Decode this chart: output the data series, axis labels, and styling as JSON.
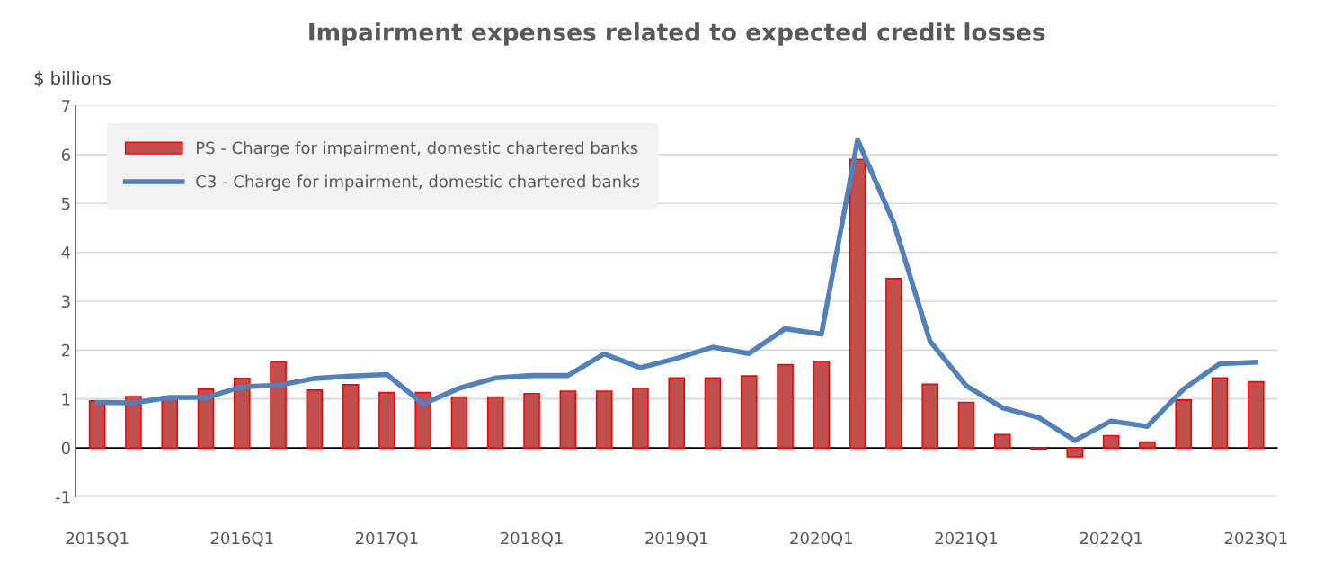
{
  "chart_data": {
    "type": "bar",
    "title": "Impairment expenses related to expected credit losses",
    "ylabel": "$ billions",
    "categories": [
      "2015Q1",
      null,
      null,
      null,
      "2016Q1",
      null,
      null,
      null,
      "2017Q1",
      null,
      null,
      null,
      "2018Q1",
      null,
      null,
      null,
      "2019Q1",
      null,
      null,
      null,
      "2020Q1",
      null,
      null,
      null,
      "2021Q1",
      null,
      null,
      null,
      "2022Q1",
      null,
      null,
      null,
      "2023Q1"
    ],
    "series": [
      {
        "name": "PS - Charge for impairment, domestic chartered banks",
        "color": "#c0504d",
        "values": [
          0.96,
          1.05,
          1.05,
          1.2,
          1.42,
          1.76,
          1.18,
          1.29,
          1.13,
          1.13,
          1.04,
          1.04,
          1.11,
          1.16,
          1.16,
          1.22,
          1.43,
          1.43,
          1.47,
          1.7,
          1.77,
          5.9,
          3.46,
          1.3,
          0.93,
          0.27,
          -0.02,
          -0.18,
          0.25,
          0.12,
          0.98,
          1.43,
          1.35
        ]
      },
      {
        "name": "C3 - Charge for impairment, domestic chartered banks",
        "type": "line",
        "color": "#4f81bd",
        "values": [
          0.93,
          0.92,
          1.03,
          1.03,
          1.25,
          1.28,
          1.42,
          1.47,
          1.5,
          0.9,
          1.22,
          1.43,
          1.48,
          1.48,
          1.92,
          1.64,
          1.83,
          2.06,
          1.93,
          2.44,
          2.33,
          6.3,
          4.6,
          2.18,
          1.27,
          0.82,
          0.62,
          0.15,
          0.55,
          0.44,
          1.2,
          1.72,
          1.75
        ]
      }
    ],
    "ylim": [
      -1,
      7
    ],
    "yticks": [
      -1,
      0,
      1,
      2,
      3,
      4,
      5,
      6,
      7
    ],
    "grid": "y",
    "legend": "top left",
    "marker": "none",
    "line_style": "solid"
  }
}
